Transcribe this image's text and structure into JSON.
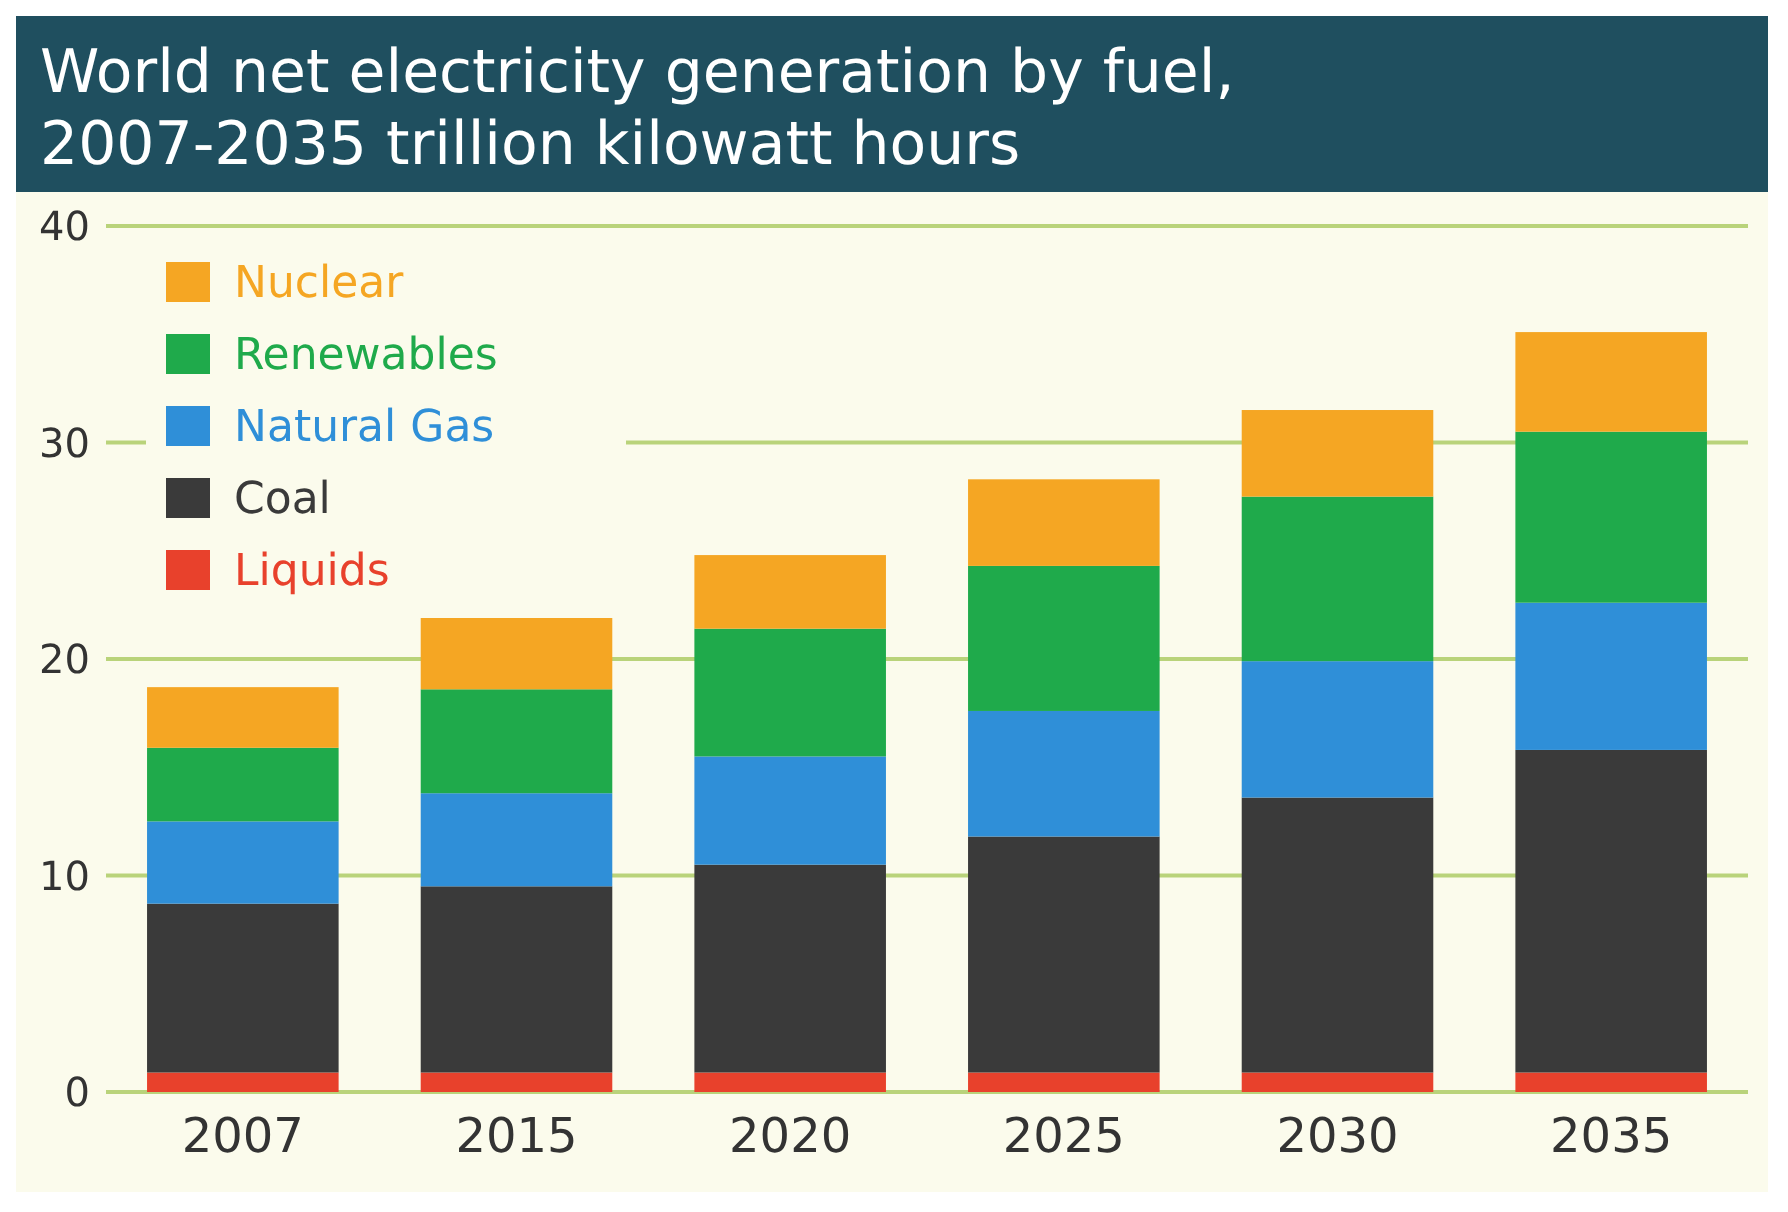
{
  "chart_data": {
    "type": "bar",
    "title": "World net electricity generation by fuel, 2007-2035 trillion kilowatt hours",
    "categories": [
      "2007",
      "2015",
      "2020",
      "2025",
      "2030",
      "2035"
    ],
    "stacked": true,
    "series": [
      {
        "name": "Liquids",
        "color": "#e8412c",
        "values": [
          0.9,
          0.9,
          0.9,
          0.9,
          0.9,
          0.9
        ]
      },
      {
        "name": "Coal",
        "color": "#3a3a3a",
        "values": [
          7.8,
          8.6,
          9.6,
          10.9,
          12.7,
          14.9
        ]
      },
      {
        "name": "Natural Gas",
        "color": "#2f8fd8",
        "values": [
          3.8,
          4.3,
          5.0,
          5.8,
          6.3,
          6.8
        ]
      },
      {
        "name": "Renewables",
        "color": "#1faa4b",
        "values": [
          3.4,
          4.8,
          5.9,
          6.7,
          7.6,
          7.9
        ]
      },
      {
        "name": "Nuclear",
        "color": "#f5a623",
        "values": [
          2.8,
          3.3,
          3.4,
          4.0,
          4.0,
          4.6
        ]
      }
    ],
    "ylim": [
      0,
      40
    ],
    "yticks": [
      0,
      10,
      20,
      30,
      40
    ],
    "grid": "y",
    "legend": "top left"
  }
}
